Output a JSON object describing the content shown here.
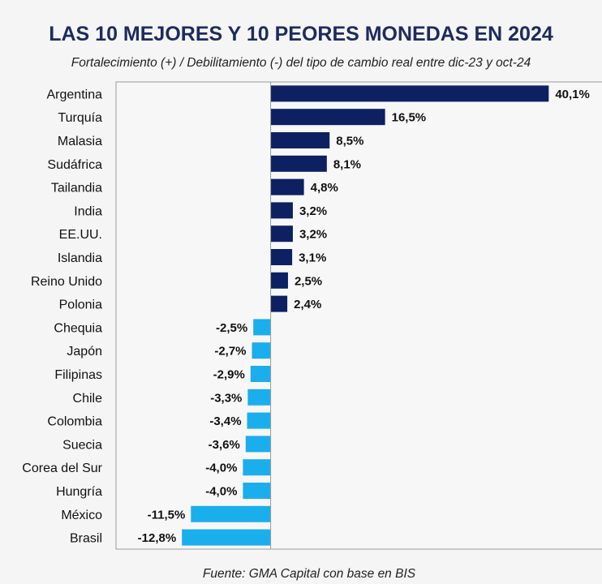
{
  "chart_data": {
    "type": "bar",
    "orientation": "horizontal",
    "title": "LAS 10 MEJORES Y 10 PEORES MONEDAS EN 2024",
    "subtitle": "Fortalecimiento (+) / Debilitamiento (-) del tipo de cambio real entre dic-23 y oct-24",
    "source": "Fuente: GMA Capital con base en BIS",
    "categories": [
      "Argentina",
      "Turquía",
      "Malasia",
      "Sudáfrica",
      "Tailandia",
      "India",
      "EE.UU.",
      "Islandia",
      "Reino Unido",
      "Polonia",
      "Chequia",
      "Japón",
      "Filipinas",
      "Chile",
      "Colombia",
      "Suecia",
      "Corea del Sur",
      "Hungría",
      "México",
      "Brasil"
    ],
    "values": [
      40.1,
      16.5,
      8.5,
      8.1,
      4.8,
      3.2,
      3.2,
      3.1,
      2.5,
      2.4,
      -2.5,
      -2.7,
      -2.9,
      -3.3,
      -3.4,
      -3.6,
      -4.0,
      -4.0,
      -11.5,
      -12.8
    ],
    "labels": [
      "40,1%",
      "16,5%",
      "8,5%",
      "8,1%",
      "4,8%",
      "3,2%",
      "3,2%",
      "3,1%",
      "2,5%",
      "2,4%",
      "-2,5%",
      "-2,7%",
      "-2,9%",
      "-3,3%",
      "-3,4%",
      "-3,6%",
      "-4,0%",
      "-4,0%",
      "-11,5%",
      "-12,8%"
    ],
    "unit": "%",
    "xlim": [
      -22.3,
      47.9
    ],
    "grid": false,
    "colors": {
      "positive": "#0c2062",
      "negative": "#1aaeec",
      "title": "#1d2b5e"
    }
  }
}
